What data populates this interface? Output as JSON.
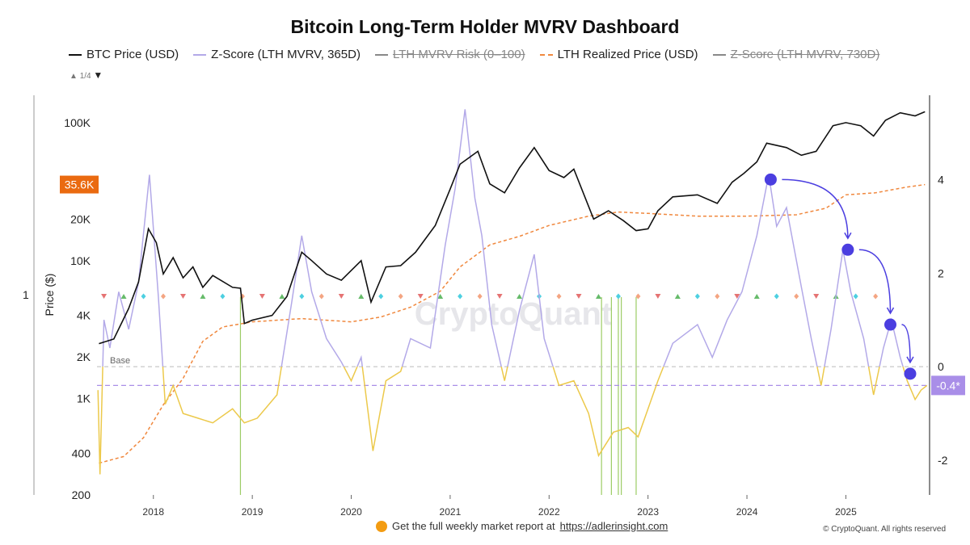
{
  "title": "Bitcoin Long-Term Holder MVRV Dashboard",
  "legend": [
    {
      "label": "BTC Price (USD)",
      "color": "#111111",
      "style": "solid",
      "hidden": false
    },
    {
      "label": "Z-Score (LTH MVRV, 365D)",
      "color": "#b3a9e8",
      "style": "solid",
      "hidden": false
    },
    {
      "label": "LTH MVRV Risk (0–100)",
      "color": "#888888",
      "style": "solid",
      "hidden": true
    },
    {
      "label": "LTH Realized Price (USD)",
      "color": "#f0883e",
      "style": "dashed",
      "hidden": false
    },
    {
      "label": "Z-Score (LTH MVRV, 730D)",
      "color": "#888888",
      "style": "solid",
      "hidden": true
    }
  ],
  "pager": "1/4",
  "side_label": "1",
  "watermark": "CryptoQuant",
  "footer": {
    "text": "Get the full weekly market report at",
    "link": "https://adlerinsight.com",
    "copyright": "© CryptoQuant. All rights reserved"
  },
  "chart_data": {
    "type": "line",
    "ylabel": "Price ($)",
    "y_scale": "log",
    "ylim": [
      200,
      158000
    ],
    "y_ticks": [
      {
        "v": 100000,
        "l": "100K"
      },
      {
        "v": 20000,
        "l": "20K"
      },
      {
        "v": 10000,
        "l": "10K"
      },
      {
        "v": 4000,
        "l": "4K"
      },
      {
        "v": 2000,
        "l": "2K"
      },
      {
        "v": 1000,
        "l": "1K"
      },
      {
        "v": 400,
        "l": "400"
      },
      {
        "v": 200,
        "l": "200"
      }
    ],
    "y2lim": [
      -2.74,
      5.8
    ],
    "y2_ticks": [
      4,
      2,
      0,
      -2
    ],
    "xlim": [
      2017.43,
      2025.83
    ],
    "x_ticks": [
      2018,
      2019,
      2020,
      2021,
      2022,
      2023,
      2024,
      2025
    ],
    "price_label": "35.6K",
    "z_label": "-0.4*",
    "base_label": "Base",
    "base_z": 0,
    "threshold_z": -0.4,
    "colors": {
      "price": "#111111",
      "z_above": "#b3a9e8",
      "z_below": "#ecc94b",
      "realized": "#f0883e",
      "threshold": "#a98ee8",
      "base": "#bbbbbb",
      "marker": "#4b3ee0",
      "signal": "#9ccc65",
      "price_badge": "#ea6a10",
      "z_badge": "#a98ee8"
    },
    "series": [
      {
        "name": "BTC Price (USD)",
        "axis": "left",
        "points": [
          [
            2017.45,
            2500
          ],
          [
            2017.6,
            2700
          ],
          [
            2017.75,
            4500
          ],
          [
            2017.85,
            7000
          ],
          [
            2017.95,
            17000
          ],
          [
            2018.03,
            13500
          ],
          [
            2018.1,
            8000
          ],
          [
            2018.2,
            10500
          ],
          [
            2018.3,
            7500
          ],
          [
            2018.4,
            9000
          ],
          [
            2018.5,
            6400
          ],
          [
            2018.6,
            7800
          ],
          [
            2018.8,
            6400
          ],
          [
            2018.88,
            6300
          ],
          [
            2018.92,
            3500
          ],
          [
            2019.0,
            3700
          ],
          [
            2019.2,
            4000
          ],
          [
            2019.35,
            5500
          ],
          [
            2019.5,
            11500
          ],
          [
            2019.6,
            10000
          ],
          [
            2019.75,
            8000
          ],
          [
            2019.9,
            7200
          ],
          [
            2020.1,
            10000
          ],
          [
            2020.2,
            5000
          ],
          [
            2020.35,
            9000
          ],
          [
            2020.5,
            9200
          ],
          [
            2020.65,
            11500
          ],
          [
            2020.85,
            18000
          ],
          [
            2021.0,
            33000
          ],
          [
            2021.1,
            50000
          ],
          [
            2021.28,
            62000
          ],
          [
            2021.4,
            36000
          ],
          [
            2021.55,
            31000
          ],
          [
            2021.7,
            47000
          ],
          [
            2021.85,
            66000
          ],
          [
            2022.0,
            45000
          ],
          [
            2022.15,
            40000
          ],
          [
            2022.25,
            46000
          ],
          [
            2022.45,
            20000
          ],
          [
            2022.6,
            23000
          ],
          [
            2022.75,
            19500
          ],
          [
            2022.88,
            16500
          ],
          [
            2023.0,
            17000
          ],
          [
            2023.1,
            23000
          ],
          [
            2023.25,
            29000
          ],
          [
            2023.5,
            30000
          ],
          [
            2023.7,
            26000
          ],
          [
            2023.85,
            37000
          ],
          [
            2023.97,
            43000
          ],
          [
            2024.1,
            52000
          ],
          [
            2024.2,
            71000
          ],
          [
            2024.4,
            66000
          ],
          [
            2024.55,
            58000
          ],
          [
            2024.7,
            62000
          ],
          [
            2024.87,
            95000
          ],
          [
            2025.0,
            100000
          ],
          [
            2025.15,
            95000
          ],
          [
            2025.28,
            80000
          ],
          [
            2025.4,
            104000
          ],
          [
            2025.55,
            118000
          ],
          [
            2025.7,
            112000
          ],
          [
            2025.8,
            120000
          ]
        ]
      },
      {
        "name": "Z-Score (LTH MVRV, 365D)",
        "axis": "right",
        "points": [
          [
            2017.44,
            -0.5
          ],
          [
            2017.46,
            -2.3
          ],
          [
            2017.5,
            1.0
          ],
          [
            2017.56,
            0.4
          ],
          [
            2017.65,
            1.6
          ],
          [
            2017.75,
            0.8
          ],
          [
            2017.85,
            1.8
          ],
          [
            2017.96,
            4.1
          ],
          [
            2018.05,
            1.5
          ],
          [
            2018.12,
            -0.8
          ],
          [
            2018.2,
            -0.4
          ],
          [
            2018.3,
            -1.0
          ],
          [
            2018.45,
            -1.1
          ],
          [
            2018.6,
            -1.2
          ],
          [
            2018.8,
            -0.9
          ],
          [
            2018.92,
            -1.2
          ],
          [
            2019.05,
            -1.1
          ],
          [
            2019.25,
            -0.6
          ],
          [
            2019.4,
            1.4
          ],
          [
            2019.5,
            2.8
          ],
          [
            2019.6,
            1.6
          ],
          [
            2019.75,
            0.6
          ],
          [
            2019.9,
            0.1
          ],
          [
            2020.0,
            -0.3
          ],
          [
            2020.1,
            0.2
          ],
          [
            2020.22,
            -1.8
          ],
          [
            2020.35,
            -0.3
          ],
          [
            2020.5,
            -0.1
          ],
          [
            2020.6,
            0.6
          ],
          [
            2020.8,
            0.4
          ],
          [
            2020.95,
            2.6
          ],
          [
            2021.05,
            3.8
          ],
          [
            2021.15,
            5.5
          ],
          [
            2021.25,
            3.6
          ],
          [
            2021.32,
            2.8
          ],
          [
            2021.42,
            0.9
          ],
          [
            2021.55,
            -0.3
          ],
          [
            2021.7,
            1.2
          ],
          [
            2021.85,
            2.4
          ],
          [
            2021.95,
            0.6
          ],
          [
            2022.1,
            -0.4
          ],
          [
            2022.25,
            -0.3
          ],
          [
            2022.4,
            -1.0
          ],
          [
            2022.5,
            -1.9
          ],
          [
            2022.65,
            -1.4
          ],
          [
            2022.8,
            -1.3
          ],
          [
            2022.9,
            -1.5
          ],
          [
            2023.0,
            -0.9
          ],
          [
            2023.1,
            -0.3
          ],
          [
            2023.25,
            0.5
          ],
          [
            2023.5,
            0.9
          ],
          [
            2023.65,
            0.2
          ],
          [
            2023.8,
            1.0
          ],
          [
            2023.95,
            1.6
          ],
          [
            2024.1,
            2.8
          ],
          [
            2024.22,
            4.1
          ],
          [
            2024.3,
            3.0
          ],
          [
            2024.4,
            3.4
          ],
          [
            2024.55,
            1.7
          ],
          [
            2024.65,
            0.6
          ],
          [
            2024.75,
            -0.4
          ],
          [
            2024.85,
            0.8
          ],
          [
            2024.97,
            2.5
          ],
          [
            2025.05,
            1.6
          ],
          [
            2025.18,
            0.6
          ],
          [
            2025.28,
            -0.6
          ],
          [
            2025.38,
            0.4
          ],
          [
            2025.46,
            1.0
          ],
          [
            2025.55,
            0.2
          ],
          [
            2025.62,
            -0.3
          ],
          [
            2025.7,
            -0.7
          ],
          [
            2025.76,
            -0.5
          ],
          [
            2025.82,
            -0.4
          ]
        ]
      },
      {
        "name": "LTH Realized Price (USD)",
        "axis": "left",
        "points": [
          [
            2017.45,
            340
          ],
          [
            2017.7,
            380
          ],
          [
            2017.9,
            520
          ],
          [
            2018.1,
            900
          ],
          [
            2018.3,
            1400
          ],
          [
            2018.5,
            2600
          ],
          [
            2018.7,
            3300
          ],
          [
            2019.0,
            3600
          ],
          [
            2019.5,
            3800
          ],
          [
            2020.0,
            3600
          ],
          [
            2020.3,
            3900
          ],
          [
            2020.6,
            4600
          ],
          [
            2020.9,
            6000
          ],
          [
            2021.1,
            9000
          ],
          [
            2021.4,
            13000
          ],
          [
            2021.7,
            15000
          ],
          [
            2022.0,
            18000
          ],
          [
            2022.4,
            21000
          ],
          [
            2022.7,
            22500
          ],
          [
            2023.0,
            22000
          ],
          [
            2023.5,
            21000
          ],
          [
            2024.0,
            21000
          ],
          [
            2024.5,
            21500
          ],
          [
            2024.8,
            24000
          ],
          [
            2025.0,
            30000
          ],
          [
            2025.3,
            31000
          ],
          [
            2025.6,
            34000
          ],
          [
            2025.8,
            35600
          ]
        ]
      }
    ],
    "signal_dates": [
      2018.88,
      2022.53,
      2022.63,
      2022.7,
      2022.73,
      2022.88
    ],
    "highlight_points": [
      [
        2024.24,
        4.0
      ],
      [
        2025.02,
        2.5
      ],
      [
        2025.45,
        0.9
      ],
      [
        2025.65,
        -0.15
      ]
    ]
  }
}
